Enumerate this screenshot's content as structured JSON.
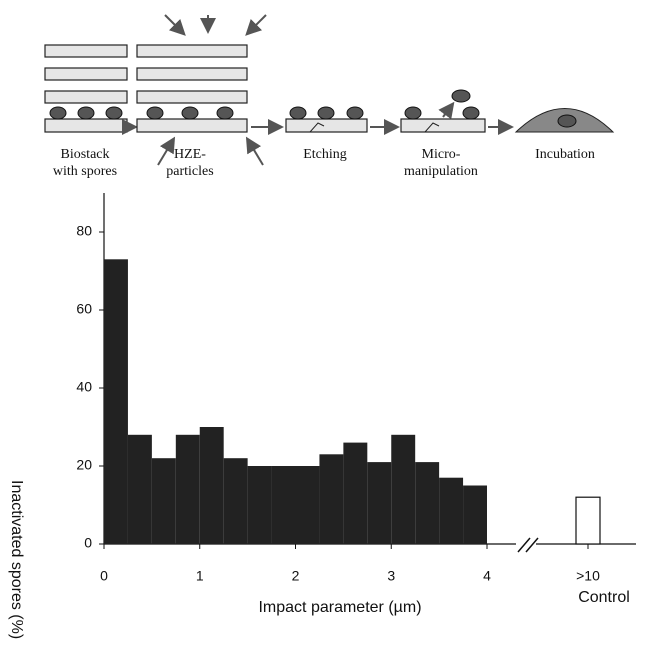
{
  "diagram": {
    "steps": [
      [
        "Biostack",
        "with spores"
      ],
      [
        "HZE-",
        "particles"
      ],
      [
        "Etching"
      ],
      [
        "Micro-",
        "manipulation"
      ],
      [
        "Incubation"
      ]
    ]
  },
  "chart_data": {
    "type": "histogram",
    "bins": [
      0,
      0.25,
      0.5,
      0.75,
      1,
      1.25,
      1.5,
      1.75,
      2,
      2.25,
      2.5,
      2.75,
      3,
      3.25,
      3.5,
      3.75,
      4
    ],
    "values": [
      73,
      28,
      22,
      28,
      30,
      22,
      20,
      20,
      20,
      23,
      26,
      21,
      28,
      21,
      17,
      15
    ],
    "color": "#222222",
    "control": {
      "label": ">10",
      "name": "Control",
      "value": 12
    },
    "xlabel": "Impact parameter (µm)",
    "ylabel": "Inactivated spores (%)",
    "xlim": [
      0,
      4
    ],
    "xticks": [
      0,
      1,
      2,
      3,
      4
    ],
    "ylim": [
      0,
      90
    ],
    "yticks": [
      0,
      20,
      40,
      60,
      80
    ]
  }
}
